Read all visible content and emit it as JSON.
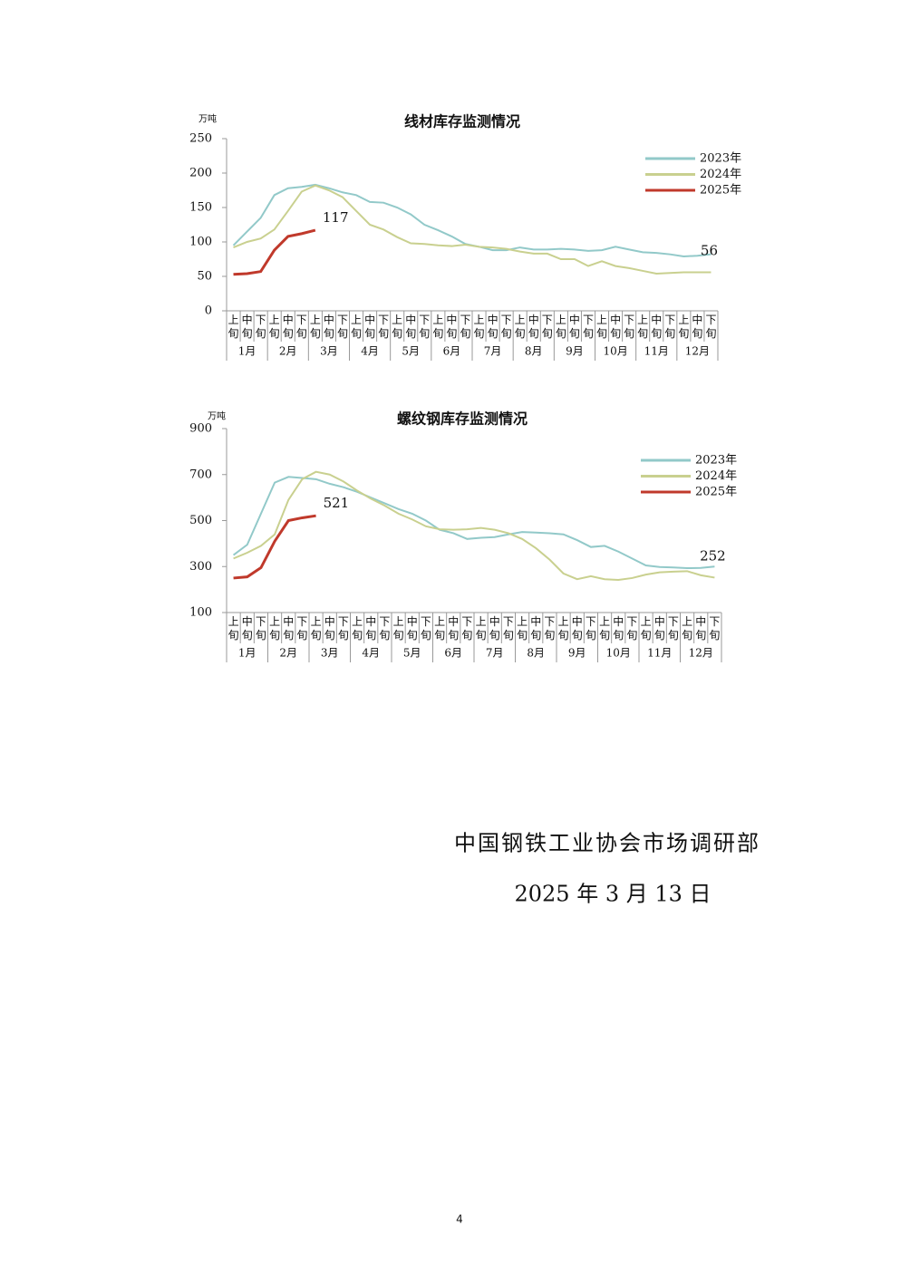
{
  "chart_data": [
    {
      "type": "line",
      "title": "线材库存监测情况",
      "y_unit": "万吨",
      "categories": [
        "上旬",
        "中旬",
        "下旬",
        "上旬",
        "中旬",
        "下旬",
        "上旬",
        "中旬",
        "下旬",
        "上旬",
        "中旬",
        "下旬",
        "上旬",
        "中旬",
        "下旬",
        "上旬",
        "中旬",
        "下旬",
        "上旬",
        "中旬",
        "下旬",
        "上旬",
        "中旬",
        "下旬",
        "上旬",
        "中旬",
        "下旬",
        "上旬",
        "中旬",
        "下旬",
        "上旬",
        "中旬",
        "下旬",
        "上旬",
        "中旬",
        "下旬"
      ],
      "months": [
        "1月",
        "2月",
        "3月",
        "4月",
        "5月",
        "6月",
        "7月",
        "8月",
        "9月",
        "10月",
        "11月",
        "12月"
      ],
      "ylim": [
        0,
        250
      ],
      "yticks": [
        0,
        50,
        100,
        150,
        200,
        250
      ],
      "series": [
        {
          "name": "2023年",
          "color": "#92c9c9",
          "values": [
            95,
            115,
            135,
            168,
            178,
            180,
            183,
            178,
            172,
            168,
            158,
            157,
            150,
            140,
            125,
            117,
            108,
            97,
            93,
            88,
            88,
            92,
            89,
            89,
            90,
            89,
            87,
            88,
            93,
            89,
            85,
            84,
            82,
            79,
            80,
            82
          ]
        },
        {
          "name": "2024年",
          "color": "#c9d08f",
          "values": [
            92,
            100,
            105,
            118,
            145,
            173,
            182,
            175,
            165,
            145,
            125,
            118,
            107,
            98,
            97,
            95,
            94,
            96,
            93,
            92,
            90,
            86,
            83,
            83,
            75,
            75,
            65,
            72,
            65,
            62,
            58,
            54,
            55,
            56,
            56,
            56
          ]
        },
        {
          "name": "2025年",
          "color": "#c0392b",
          "values": [
            53,
            54,
            57,
            88,
            108,
            112,
            117,
            null,
            null,
            null,
            null,
            null,
            null,
            null,
            null,
            null,
            null,
            null,
            null,
            null,
            null,
            null,
            null,
            null,
            null,
            null,
            null,
            null,
            null,
            null,
            null,
            null,
            null,
            null,
            null,
            null
          ]
        }
      ],
      "data_labels": [
        {
          "series": 2,
          "index": 6
        },
        {
          "series": 1,
          "index": 35
        }
      ]
    },
    {
      "type": "line",
      "title": "螺纹钢库存监测情况",
      "y_unit": "万吨",
      "categories": [
        "上旬",
        "中旬",
        "下旬",
        "上旬",
        "中旬",
        "下旬",
        "上旬",
        "中旬",
        "下旬",
        "上旬",
        "中旬",
        "下旬",
        "上旬",
        "中旬",
        "下旬",
        "上旬",
        "中旬",
        "下旬",
        "上旬",
        "中旬",
        "下旬",
        "上旬",
        "中旬",
        "下旬",
        "上旬",
        "中旬",
        "下旬",
        "上旬",
        "中旬",
        "下旬",
        "上旬",
        "中旬",
        "下旬",
        "上旬",
        "中旬",
        "下旬"
      ],
      "months": [
        "1月",
        "2月",
        "3月",
        "4月",
        "5月",
        "6月",
        "7月",
        "8月",
        "9月",
        "10月",
        "11月",
        "12月"
      ],
      "ylim": [
        100,
        900
      ],
      "yticks": [
        100,
        300,
        500,
        700,
        900
      ],
      "series": [
        {
          "name": "2023年",
          "color": "#92c9c9",
          "values": [
            350,
            395,
            530,
            665,
            690,
            685,
            680,
            660,
            645,
            625,
            600,
            575,
            550,
            530,
            500,
            460,
            445,
            420,
            425,
            428,
            440,
            450,
            448,
            445,
            440,
            415,
            385,
            390,
            365,
            335,
            305,
            298,
            296,
            293,
            294,
            300
          ]
        },
        {
          "name": "2024年",
          "color": "#c9d08f",
          "values": [
            335,
            360,
            390,
            440,
            590,
            680,
            712,
            700,
            670,
            630,
            595,
            565,
            530,
            505,
            475,
            462,
            460,
            462,
            468,
            460,
            445,
            420,
            380,
            330,
            270,
            245,
            258,
            245,
            242,
            250,
            265,
            275,
            278,
            280,
            262,
            252
          ]
        },
        {
          "name": "2025年",
          "color": "#c0392b",
          "values": [
            250,
            255,
            295,
            410,
            500,
            512,
            521,
            null,
            null,
            null,
            null,
            null,
            null,
            null,
            null,
            null,
            null,
            null,
            null,
            null,
            null,
            null,
            null,
            null,
            null,
            null,
            null,
            null,
            null,
            null,
            null,
            null,
            null,
            null,
            null,
            null
          ]
        }
      ],
      "data_labels": [
        {
          "series": 2,
          "index": 6
        },
        {
          "series": 1,
          "index": 35
        }
      ]
    }
  ],
  "footer": {
    "organization": "中国钢铁工业协会市场调研部",
    "date": "2025 年 3 月 13 日",
    "page_number": 4
  }
}
